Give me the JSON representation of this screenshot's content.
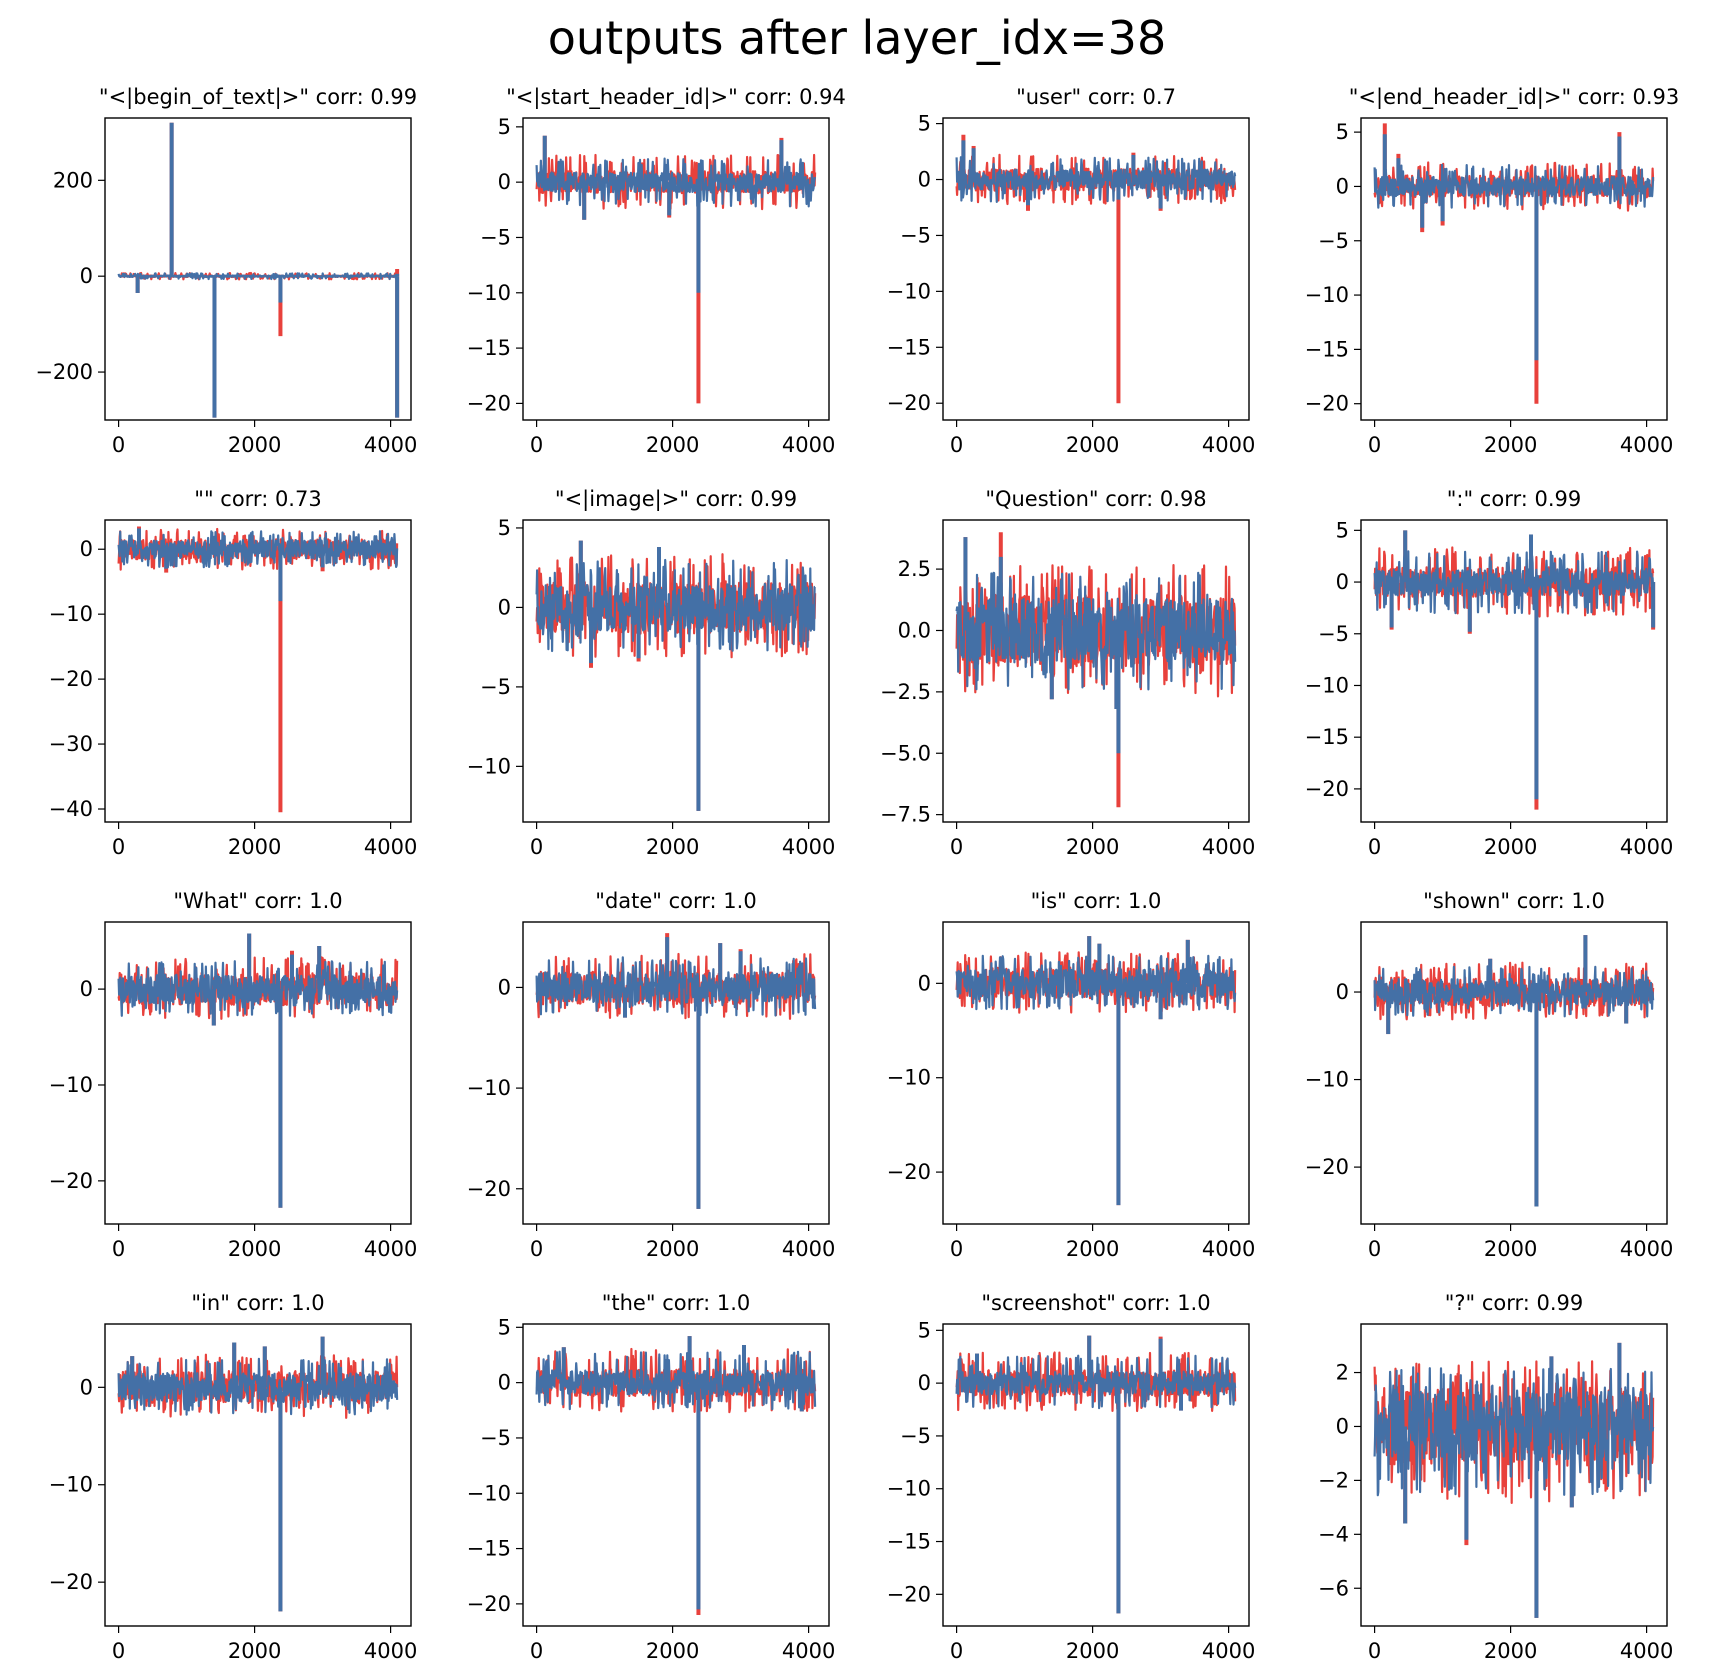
{
  "figure_title": "outputs after layer_idx=38",
  "colors": {
    "series_a": "#e8413c",
    "series_b": "#4470a6",
    "axes": "#000000",
    "background": "#ffffff"
  },
  "series_note_hidden": false,
  "chart_data": [
    {
      "type": "line",
      "title": "\"<|begin_of_text|>\" corr: 0.99",
      "x_ticks": [
        "0",
        "2000",
        "4000"
      ],
      "xlim": [
        -200,
        4300
      ],
      "y_ticks": [
        200,
        0,
        -200
      ],
      "y_tick_labels": [
        "200",
        "0",
        "−200"
      ],
      "ylim": [
        -300,
        330
      ],
      "noise": {
        "band": 1.5,
        "spike_up": 6,
        "spike_down": -6
      },
      "spikes": [
        {
          "x": 780,
          "a": 320,
          "b": 320
        },
        {
          "x": 1410,
          "a": -295,
          "b": -295
        },
        {
          "x": 2380,
          "a": -125,
          "b": -55
        },
        {
          "x": 4096,
          "a": -295,
          "b": -295
        },
        {
          "x": 280,
          "a": -35,
          "b": -35
        },
        {
          "x": 4096,
          "a": 15,
          "b": 5
        }
      ]
    },
    {
      "type": "line",
      "title": "\"<|start_header_id|>\" corr: 0.94",
      "x_ticks": [
        "0",
        "2000",
        "4000"
      ],
      "xlim": [
        -200,
        4300
      ],
      "y_ticks": [
        5,
        0,
        -5,
        -10,
        -15,
        -20
      ],
      "y_tick_labels": [
        "5",
        "0",
        "−5",
        "−10",
        "−15",
        "−20"
      ],
      "ylim": [
        -21.5,
        5.8
      ],
      "noise": {
        "band": 0.9,
        "spike_up": 2.2,
        "spike_down": -2.2
      },
      "spikes": [
        {
          "x": 2380,
          "a": -20,
          "b": -10
        },
        {
          "x": 120,
          "a": 4.2,
          "b": 4.2
        },
        {
          "x": 3600,
          "a": 4,
          "b": 3.8
        },
        {
          "x": 700,
          "a": -3.4,
          "b": -3.4
        },
        {
          "x": 1950,
          "a": -3.2,
          "b": -3
        }
      ]
    },
    {
      "type": "line",
      "title": "\"user\" corr: 0.7",
      "x_ticks": [
        "0",
        "2000",
        "4000"
      ],
      "xlim": [
        -200,
        4300
      ],
      "y_ticks": [
        5,
        0,
        -5,
        -10,
        -15,
        -20
      ],
      "y_tick_labels": [
        "5",
        "0",
        "−5",
        "−10",
        "−15",
        "−20"
      ],
      "ylim": [
        -21.5,
        5.5
      ],
      "noise": {
        "band": 0.9,
        "spike_up": 2,
        "spike_down": -2
      },
      "spikes": [
        {
          "x": 2380,
          "a": -20,
          "b": -1.8
        },
        {
          "x": 100,
          "a": 4,
          "b": 3.5
        },
        {
          "x": 250,
          "a": 3,
          "b": 2.8
        },
        {
          "x": 1050,
          "a": -2.8,
          "b": -2.3
        },
        {
          "x": 3000,
          "a": -2.8,
          "b": -2.6
        },
        {
          "x": 2600,
          "a": 2.4,
          "b": 2.2
        }
      ]
    },
    {
      "type": "line",
      "title": "\"<|end_header_id|>\" corr: 0.93",
      "x_ticks": [
        "0",
        "2000",
        "4000"
      ],
      "xlim": [
        -200,
        4300
      ],
      "y_ticks": [
        5,
        0,
        -5,
        -10,
        -15,
        -20
      ],
      "y_tick_labels": [
        "5",
        "0",
        "−5",
        "−10",
        "−15",
        "−20"
      ],
      "ylim": [
        -21.5,
        6.3
      ],
      "noise": {
        "band": 0.9,
        "spike_up": 2,
        "spike_down": -2
      },
      "spikes": [
        {
          "x": 2380,
          "a": -20,
          "b": -16
        },
        {
          "x": 150,
          "a": 5.8,
          "b": 4.8
        },
        {
          "x": 3600,
          "a": 5,
          "b": 4.6
        },
        {
          "x": 700,
          "a": -4.2,
          "b": -3.8
        },
        {
          "x": 1000,
          "a": -3.6,
          "b": -3.2
        },
        {
          "x": 350,
          "a": 3,
          "b": 2.6
        }
      ]
    },
    {
      "type": "line",
      "title": "\"\" corr: 0.73",
      "x_ticks": [
        "0",
        "2000",
        "4000"
      ],
      "xlim": [
        -200,
        4300
      ],
      "y_ticks": [
        0,
        -10,
        -20,
        -30,
        -40
      ],
      "y_tick_labels": [
        "0",
        "−10",
        "−20",
        "−30",
        "−40"
      ],
      "ylim": [
        -42,
        4.5
      ],
      "noise": {
        "band": 1.4,
        "spike_up": 2.8,
        "spike_down": -2.8
      },
      "spikes": [
        {
          "x": 2380,
          "a": -40.5,
          "b": -8
        },
        {
          "x": 300,
          "a": 3.5,
          "b": 3.2
        },
        {
          "x": 700,
          "a": -3.6,
          "b": -3
        },
        {
          "x": 3000,
          "a": -3.4,
          "b": -2.8
        }
      ]
    },
    {
      "type": "line",
      "title": "\"<|image|>\" corr: 0.99",
      "x_ticks": [
        "0",
        "2000",
        "4000"
      ],
      "xlim": [
        -200,
        4300
      ],
      "y_ticks": [
        5,
        0,
        -5,
        -10
      ],
      "y_tick_labels": [
        "5",
        "0",
        "−5",
        "−10"
      ],
      "ylim": [
        -13.5,
        5.5
      ],
      "noise": {
        "band": 1.5,
        "spike_up": 3,
        "spike_down": -2.8
      },
      "spikes": [
        {
          "x": 2380,
          "a": -12.8,
          "b": -12.8
        },
        {
          "x": 650,
          "a": 4.2,
          "b": 4.2
        },
        {
          "x": 1800,
          "a": 3.8,
          "b": 3.8
        },
        {
          "x": 800,
          "a": -3.8,
          "b": -3.5
        },
        {
          "x": 1500,
          "a": -3.4,
          "b": -3.2
        }
      ]
    },
    {
      "type": "line",
      "title": "\"Question\" corr: 0.98",
      "x_ticks": [
        "0",
        "2000",
        "4000"
      ],
      "xlim": [
        -200,
        4300
      ],
      "y_ticks": [
        2.5,
        0,
        -2.5,
        -5,
        -7.5
      ],
      "y_tick_labels": [
        "2.5",
        "0.0",
        "−2.5",
        "−5.0",
        "−7.5"
      ],
      "ylim": [
        -7.8,
        4.5
      ],
      "noise": {
        "band": 1.3,
        "spike_up": 2.4,
        "spike_down": -2.4
      },
      "spikes": [
        {
          "x": 2380,
          "a": -7.2,
          "b": -5
        },
        {
          "x": 130,
          "a": 3.8,
          "b": 3.8
        },
        {
          "x": 650,
          "a": 4,
          "b": 3
        },
        {
          "x": 2350,
          "a": -3.2,
          "b": -3.2
        },
        {
          "x": 1400,
          "a": -2.8,
          "b": -2.8
        }
      ]
    },
    {
      "type": "line",
      "title": "\":\" corr: 0.99",
      "x_ticks": [
        "0",
        "2000",
        "4000"
      ],
      "xlim": [
        -200,
        4300
      ],
      "y_ticks": [
        5,
        0,
        -5,
        -10,
        -15,
        -20
      ],
      "y_tick_labels": [
        "5",
        "0",
        "−5",
        "−10",
        "−15",
        "−20"
      ],
      "ylim": [
        -23.2,
        6
      ],
      "noise": {
        "band": 1.3,
        "spike_up": 3,
        "spike_down": -3
      },
      "spikes": [
        {
          "x": 2380,
          "a": -22,
          "b": -21
        },
        {
          "x": 450,
          "a": 5,
          "b": 5
        },
        {
          "x": 2300,
          "a": 4.6,
          "b": 4.6
        },
        {
          "x": 4096,
          "a": -4.6,
          "b": -4.4
        },
        {
          "x": 1400,
          "a": -5,
          "b": -4.8
        },
        {
          "x": 250,
          "a": -4.6,
          "b": -4.4
        }
      ]
    },
    {
      "type": "line",
      "title": "\"What\" corr: 1.0",
      "x_ticks": [
        "0",
        "2000",
        "4000"
      ],
      "xlim": [
        -200,
        4300
      ],
      "y_ticks": [
        0,
        -10,
        -20
      ],
      "y_tick_labels": [
        "0",
        "−10",
        "−20"
      ],
      "ylim": [
        -24.5,
        7
      ],
      "noise": {
        "band": 1.5,
        "spike_up": 3,
        "spike_down": -2.8
      },
      "spikes": [
        {
          "x": 2380,
          "a": -22.8,
          "b": -22.8
        },
        {
          "x": 1920,
          "a": 5.8,
          "b": 5.8
        },
        {
          "x": 2950,
          "a": 4.5,
          "b": 4.5
        },
        {
          "x": 1400,
          "a": -3.8,
          "b": -3.8
        },
        {
          "x": 2550,
          "a": 4,
          "b": 3.6
        }
      ]
    },
    {
      "type": "line",
      "title": "\"date\" corr: 1.0",
      "x_ticks": [
        "0",
        "2000",
        "4000"
      ],
      "xlim": [
        -200,
        4300
      ],
      "y_ticks": [
        0,
        -10,
        -20
      ],
      "y_tick_labels": [
        "0",
        "−10",
        "−20"
      ],
      "ylim": [
        -23.5,
        6.5
      ],
      "noise": {
        "band": 1.5,
        "spike_up": 3,
        "spike_down": -2.8
      },
      "spikes": [
        {
          "x": 2380,
          "a": -22,
          "b": -22
        },
        {
          "x": 1920,
          "a": 5.4,
          "b": 5
        },
        {
          "x": 2700,
          "a": 4.4,
          "b": 4.4
        },
        {
          "x": 3000,
          "a": 3.8,
          "b": 3.6
        },
        {
          "x": 1300,
          "a": -3,
          "b": -3
        }
      ]
    },
    {
      "type": "line",
      "title": "\"is\" corr: 1.0",
      "x_ticks": [
        "0",
        "2000",
        "4000"
      ],
      "xlim": [
        -200,
        4300
      ],
      "y_ticks": [
        0,
        -10,
        -20
      ],
      "y_tick_labels": [
        "0",
        "−10",
        "−20"
      ],
      "ylim": [
        -25.5,
        6.5
      ],
      "noise": {
        "band": 1.5,
        "spike_up": 3,
        "spike_down": -2.8
      },
      "spikes": [
        {
          "x": 2380,
          "a": -23.5,
          "b": -23.5
        },
        {
          "x": 1950,
          "a": 5,
          "b": 5
        },
        {
          "x": 3400,
          "a": 4.6,
          "b": 4.6
        },
        {
          "x": 2100,
          "a": 4.2,
          "b": 4.2
        },
        {
          "x": 3000,
          "a": -3.8,
          "b": -3.8
        }
      ]
    },
    {
      "type": "line",
      "title": "\"shown\" corr: 1.0",
      "x_ticks": [
        "0",
        "2000",
        "4000"
      ],
      "xlim": [
        -200,
        4300
      ],
      "y_ticks": [
        0,
        -10,
        -20
      ],
      "y_tick_labels": [
        "0",
        "−10",
        "−20"
      ],
      "ylim": [
        -26.5,
        8
      ],
      "noise": {
        "band": 1.5,
        "spike_up": 3,
        "spike_down": -2.8
      },
      "spikes": [
        {
          "x": 2380,
          "a": -24.5,
          "b": -24.5
        },
        {
          "x": 3100,
          "a": 6.5,
          "b": 6.5
        },
        {
          "x": 200,
          "a": -4.8,
          "b": -4.8
        },
        {
          "x": 1700,
          "a": 3.8,
          "b": 3.8
        },
        {
          "x": 3700,
          "a": -3.6,
          "b": -3.6
        }
      ]
    },
    {
      "type": "line",
      "title": "\"in\" corr: 1.0",
      "x_ticks": [
        "0",
        "2000",
        "4000"
      ],
      "xlim": [
        -200,
        4300
      ],
      "y_ticks": [
        0,
        -10,
        -20
      ],
      "y_tick_labels": [
        "0",
        "−10",
        "−20"
      ],
      "ylim": [
        -24.5,
        6.5
      ],
      "noise": {
        "band": 1.5,
        "spike_up": 3,
        "spike_down": -2.8
      },
      "spikes": [
        {
          "x": 2380,
          "a": -23,
          "b": -23
        },
        {
          "x": 3000,
          "a": 5.2,
          "b": 5.2
        },
        {
          "x": 1700,
          "a": 4.6,
          "b": 4.6
        },
        {
          "x": 2150,
          "a": 4.2,
          "b": 4.2
        },
        {
          "x": 200,
          "a": 3.2,
          "b": 3.2
        }
      ]
    },
    {
      "type": "line",
      "title": "\"the\" corr: 1.0",
      "x_ticks": [
        "0",
        "2000",
        "4000"
      ],
      "xlim": [
        -200,
        4300
      ],
      "y_ticks": [
        5,
        0,
        -5,
        -10,
        -15,
        -20
      ],
      "y_tick_labels": [
        "5",
        "0",
        "−5",
        "−10",
        "−15",
        "−20"
      ],
      "ylim": [
        -22,
        5.3
      ],
      "noise": {
        "band": 1.1,
        "spike_up": 2.8,
        "spike_down": -2.4
      },
      "spikes": [
        {
          "x": 2380,
          "a": -21,
          "b": -20.5
        },
        {
          "x": 2250,
          "a": 4.2,
          "b": 4.2
        },
        {
          "x": 3050,
          "a": 3.4,
          "b": 3.4
        },
        {
          "x": 400,
          "a": 3.2,
          "b": 3.2
        },
        {
          "x": 3900,
          "a": -2.6,
          "b": -2.6
        }
      ]
    },
    {
      "type": "line",
      "title": "\"screenshot\" corr: 1.0",
      "x_ticks": [
        "0",
        "2000",
        "4000"
      ],
      "xlim": [
        -200,
        4300
      ],
      "y_ticks": [
        5,
        0,
        -5,
        -10,
        -15,
        -20
      ],
      "y_tick_labels": [
        "5",
        "0",
        "−5",
        "−10",
        "−15",
        "−20"
      ],
      "ylim": [
        -23,
        5.6
      ],
      "noise": {
        "band": 1.1,
        "spike_up": 2.6,
        "spike_down": -2.4
      },
      "spikes": [
        {
          "x": 2380,
          "a": -21.8,
          "b": -21.8
        },
        {
          "x": 1950,
          "a": 4.5,
          "b": 4.5
        },
        {
          "x": 3000,
          "a": 4.4,
          "b": 4.2
        },
        {
          "x": 3300,
          "a": -2.6,
          "b": -2.6
        },
        {
          "x": 300,
          "a": 2.8,
          "b": 2.8
        }
      ]
    },
    {
      "type": "line",
      "title": "\"?\" corr: 0.99",
      "x_ticks": [
        "0",
        "2000",
        "4000"
      ],
      "xlim": [
        -200,
        4300
      ],
      "y_ticks": [
        2,
        0,
        -2,
        -4,
        -6
      ],
      "y_tick_labels": [
        "2",
        "0",
        "−2",
        "−4",
        "−6"
      ],
      "ylim": [
        -7.4,
        3.8
      ],
      "noise": {
        "band": 1.3,
        "spike_up": 2.2,
        "spike_down": -2.6
      },
      "spikes": [
        {
          "x": 2380,
          "a": -7.1,
          "b": -7.1
        },
        {
          "x": 3600,
          "a": 3.1,
          "b": 3.1
        },
        {
          "x": 1350,
          "a": -4.4,
          "b": -4.2
        },
        {
          "x": 450,
          "a": -3.6,
          "b": -3.6
        },
        {
          "x": 2900,
          "a": -3,
          "b": -3
        },
        {
          "x": 2600,
          "a": 2.6,
          "b": 2.6
        }
      ]
    }
  ]
}
